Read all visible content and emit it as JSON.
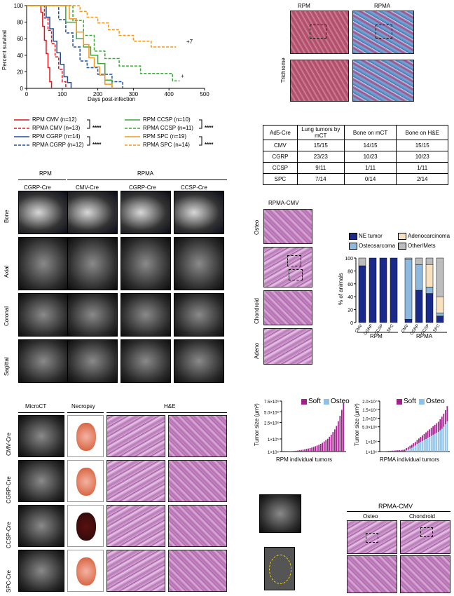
{
  "survival": {
    "ylabel": "Percent survival",
    "xlabel": "Days post-infection",
    "yticks": [
      "100",
      "80",
      "60",
      "40",
      "20",
      "0"
    ],
    "xticks": [
      "0",
      "100",
      "200",
      "300",
      "400",
      "500"
    ],
    "annot_t": "+",
    "annot_7": "+7",
    "chart_data": {
      "type": "line",
      "xlabel": "Days post-infection",
      "ylabel": "Percent survival",
      "xlim": [
        0,
        500
      ],
      "ylim": [
        0,
        100
      ],
      "series": [
        {
          "name": "RPM CMV (n=12)",
          "color": "#e4141b",
          "dash": false,
          "x": [
            0,
            40,
            45,
            50,
            55,
            60,
            65,
            70
          ],
          "y": [
            100,
            92,
            75,
            58,
            42,
            25,
            8,
            0
          ]
        },
        {
          "name": "RPMA CMV (n=13)",
          "color": "#e4141b",
          "dash": true,
          "x": [
            0,
            50,
            60,
            70,
            80,
            90,
            100,
            110
          ],
          "y": [
            100,
            85,
            70,
            54,
            38,
            23,
            8,
            0
          ]
        },
        {
          "name": "RPM CGRP (n=14)",
          "color": "#1e4fa0",
          "dash": false,
          "x": [
            0,
            55,
            65,
            75,
            85,
            95,
            105,
            115,
            125
          ],
          "y": [
            100,
            86,
            72,
            57,
            43,
            29,
            14,
            7,
            0
          ]
        },
        {
          "name": "RPMA CGRP (n=12)",
          "color": "#1e4fa0",
          "dash": true,
          "x": [
            0,
            90,
            110,
            130,
            150,
            170,
            200,
            240,
            270
          ],
          "y": [
            100,
            83,
            67,
            50,
            33,
            25,
            17,
            8,
            0
          ]
        },
        {
          "name": "RPM CCSP (n=10)",
          "color": "#3aa935",
          "dash": false,
          "x": [
            0,
            110,
            140,
            160,
            180,
            200,
            220,
            240
          ],
          "y": [
            100,
            80,
            60,
            50,
            40,
            30,
            10,
            0
          ]
        },
        {
          "name": "RPMA CCSP (n=11)",
          "color": "#3aa935",
          "dash": true,
          "x": [
            0,
            130,
            160,
            190,
            220,
            260,
            320,
            410,
            430
          ],
          "y": [
            100,
            82,
            64,
            45,
            36,
            27,
            18,
            9,
            9
          ]
        },
        {
          "name": "RPM SPC (n=19)",
          "color": "#f39a1e",
          "dash": false,
          "x": [
            0,
            120,
            140,
            160,
            175,
            190,
            205,
            220,
            240
          ],
          "y": [
            100,
            84,
            68,
            53,
            37,
            26,
            16,
            5,
            0
          ]
        },
        {
          "name": "RPMA SPC (n=14)",
          "color": "#f39a1e",
          "dash": true,
          "x": [
            0,
            150,
            170,
            200,
            230,
            260,
            300,
            350,
            420
          ],
          "y": [
            100,
            93,
            86,
            79,
            71,
            64,
            57,
            50,
            50
          ]
        }
      ]
    }
  },
  "legend": {
    "left": [
      "RPM CMV (n=12)",
      "RPMA CMV (n=13)",
      "RPM CGRP (n=14)",
      "RPMA CGRP (n=12)"
    ],
    "right": [
      "RPM CCSP (n=10)",
      "RPMA CCSP (n=11)",
      "RPM SPC (n=19)",
      "RPMA SPC (n=14)"
    ],
    "sig": "****"
  },
  "trichrome": {
    "row_label": "Trichrome",
    "cols": [
      "RPM",
      "RPMA"
    ]
  },
  "table": {
    "header": [
      "Ad5-Cre",
      "Lung tumors by mCT",
      "Bone on mCT",
      "Bone on H&E"
    ],
    "rows": [
      [
        "CMV",
        "15/15",
        "14/15",
        "15/15"
      ],
      [
        "CGRP",
        "23/23",
        "10/23",
        "10/23"
      ],
      [
        "CCSP",
        "9/11",
        "1/11",
        "1/11"
      ],
      [
        "SPC",
        "7/14",
        "0/14",
        "2/14"
      ]
    ]
  },
  "ct": {
    "group_rpm": "RPM",
    "group_rpma": "RPMA",
    "cols": [
      "CGRP-Cre",
      "CMV-Cre",
      "CGRP-Cre",
      "CCSP-Cre"
    ],
    "rows": [
      "Bone",
      "Axial",
      "Coronal",
      "Sagittal"
    ]
  },
  "histo_mid": {
    "title": "RPMA-CMV",
    "rows": [
      "Osteo",
      "Chondroid",
      "Adeno"
    ]
  },
  "stacked": {
    "legend": [
      "NE tumor",
      "Adenocarcinoma",
      "Osteosarcoma",
      "Other/Mets"
    ],
    "ylabel": "% of animals",
    "yticks": [
      "100",
      "80",
      "60",
      "40",
      "20",
      "0"
    ],
    "groups": [
      "RPM",
      "RPMA"
    ],
    "chart_data": {
      "type": "bar",
      "stacked": true,
      "ylabel": "% of animals",
      "ylim": [
        0,
        100
      ],
      "categories": [
        "CMV",
        "CGRP",
        "CCSP",
        "SPC",
        "CMV",
        "CGRP",
        "CCSP",
        "SPC"
      ],
      "series": [
        {
          "name": "NE tumor",
          "color": "#1a2a8a",
          "values": [
            88,
            100,
            100,
            100,
            5,
            50,
            45,
            10
          ]
        },
        {
          "name": "Osteosarcoma",
          "color": "#8db9de",
          "values": [
            0,
            0,
            0,
            0,
            93,
            40,
            10,
            5
          ]
        },
        {
          "name": "Adenocarcinoma",
          "color": "#f7e1bf",
          "values": [
            0,
            0,
            0,
            0,
            0,
            0,
            35,
            25
          ]
        },
        {
          "name": "Other/Mets",
          "color": "#bdbdbd",
          "values": [
            12,
            0,
            0,
            0,
            2,
            10,
            10,
            60
          ]
        }
      ]
    }
  },
  "lower_histo": {
    "headers": [
      "MicroCT",
      "Necropsy",
      "H&E"
    ],
    "rows": [
      "CMV-Cre",
      "CGRP-Cre",
      "CCSP-Cre",
      "SPC-Cre"
    ]
  },
  "tumor_rpm": {
    "ylabel": "Tumor size (μm²)",
    "xlabel": "RPM individual tumors",
    "yticks": [
      "7.5×10⁶",
      "5.0×10⁶",
      "2.5×10⁶",
      "1×10⁵",
      "1×10⁵"
    ],
    "legend": [
      "Soft",
      "Osteo"
    ],
    "chart_data": {
      "type": "bar",
      "ylabel": "Tumor size (μm²)",
      "xlabel": "RPM individual tumors",
      "series": [
        {
          "name": "Soft",
          "color": "#a0218e",
          "values": [
            0.01,
            0.01,
            0.02,
            0.03,
            0.05,
            0.07,
            0.09,
            0.12,
            0.15,
            0.19,
            0.23,
            0.28,
            0.33,
            0.39,
            0.45,
            0.52,
            0.6,
            0.7,
            0.8,
            0.9,
            1.0,
            1.15,
            1.3,
            1.5,
            1.7,
            1.9,
            2.2,
            2.5,
            2.9,
            3.3,
            3.8,
            4.5,
            5.3,
            6.2,
            7.3
          ]
        },
        {
          "name": "Osteo",
          "color": "#8cc2ea",
          "values": []
        }
      ]
    }
  },
  "tumor_rpma": {
    "ylabel": "Tumor size (μm²)",
    "xlabel": "RPMA individual tumors",
    "yticks": [
      "2.0×10⁷",
      "1.5×10⁷",
      "1.0×10⁷",
      "5.0×10⁶",
      "1×10⁶",
      "1×10⁵"
    ],
    "legend": [
      "Soft",
      "Osteo"
    ],
    "chart_data": {
      "type": "bar",
      "stacked": true,
      "ylabel": "Tumor size (μm²)",
      "xlabel": "RPMA individual tumors",
      "series": [
        {
          "name": "Soft",
          "color": "#a0218e",
          "values": [
            0.1,
            0.12,
            0.15,
            0.2,
            0.25,
            0.3,
            0.35,
            0.4,
            0.45,
            0.5,
            0.55,
            0.6,
            0.7,
            0.8,
            0.9,
            1.0,
            1.1,
            1.2,
            1.3,
            1.4,
            1.6,
            1.8,
            2.0,
            2.2,
            2.4,
            2.6,
            2.8,
            3.0,
            3.2,
            3.4,
            3.6,
            3.8,
            4.0,
            4.4,
            4.8,
            5.2,
            5.6,
            6.0
          ]
        },
        {
          "name": "Osteo",
          "color": "#8cc2ea",
          "values": [
            0,
            0,
            0,
            0,
            0,
            0,
            0,
            0,
            0,
            0,
            0,
            0,
            0,
            0,
            0.5,
            0.8,
            1.2,
            1.5,
            2.0,
            2.4,
            3.0,
            3.4,
            3.8,
            4.2,
            4.6,
            5.0,
            5.4,
            5.8,
            6.2,
            6.6,
            7.0,
            7.4,
            7.8,
            8.4,
            9.0,
            9.8,
            10.8,
            12.0
          ]
        }
      ]
    }
  },
  "bottom_right": {
    "title": "RPMA-CMV",
    "cols": [
      "Osteo",
      "Chondroid"
    ]
  }
}
